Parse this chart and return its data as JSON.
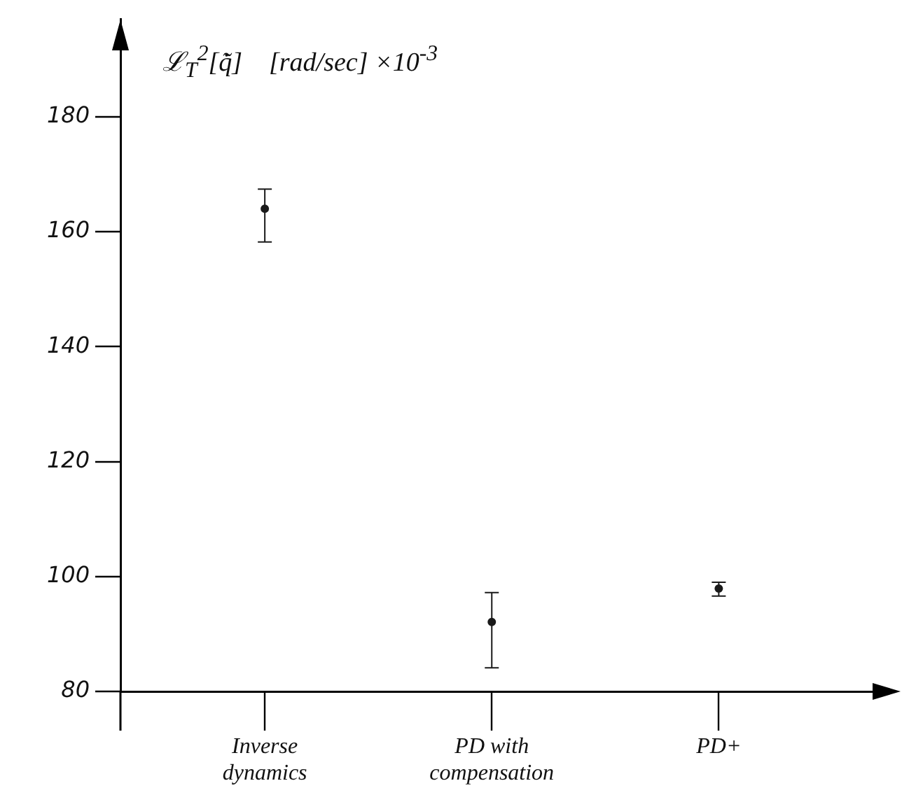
{
  "chart_data": {
    "type": "scatter",
    "ylabel": "ℒ$_{T}$$^{2}$[q̃̇]    [rad/sec] ×10$^{-3}$",
    "categories": [
      "Inverse dynamics",
      "PD with compensation",
      "PD+"
    ],
    "values": [
      164,
      92.1,
      97.9
    ],
    "errors": [
      [
        158.2,
        167.4
      ],
      [
        84.1,
        97.2
      ],
      [
        96.6,
        99.0
      ]
    ],
    "color": "#1a1a1a",
    "marker": "circle",
    "ylim": [
      80,
      197
    ],
    "yticks": [
      80,
      100,
      120,
      140,
      160,
      180
    ],
    "grid": false,
    "legend": false
  }
}
